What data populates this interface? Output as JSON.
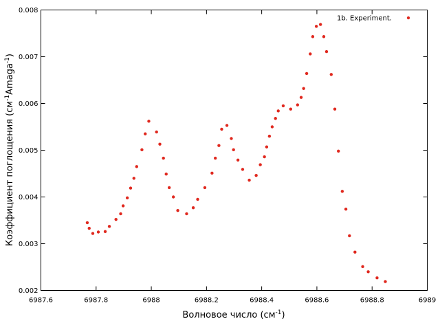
{
  "chart_data": {
    "type": "scatter",
    "title": "",
    "xlabel": "Волновое число (см",
    "xlabel_sup": "-1",
    "xlabel_end": ")",
    "ylabel_part1": "Коэффициент поглощения (см",
    "ylabel_sup1": "-1",
    "ylabel_part2": "Amaga",
    "ylabel_sup2": "-1",
    "ylabel_part3": ")",
    "xlim": [
      6987.6,
      6989.0
    ],
    "ylim": [
      0.002,
      0.008
    ],
    "x_ticks": [
      6987.6,
      6987.8,
      6988.0,
      6988.2,
      6988.4,
      6988.6,
      6988.8,
      6989.0
    ],
    "x_tick_labels": [
      "6987.6",
      "6987.8",
      "6988",
      "6988.2",
      "6988.4",
      "6988.6",
      "6988.8",
      "6989"
    ],
    "y_ticks": [
      0.002,
      0.003,
      0.004,
      0.005,
      0.006,
      0.007,
      0.008
    ],
    "y_tick_labels": [
      "0.002",
      "0.003",
      "0.004",
      "0.005",
      "0.006",
      "0.007",
      "0.008"
    ],
    "grid": false,
    "legend_position": "top-right",
    "series": [
      {
        "name": "1b. Experiment.",
        "color": "#e0281e",
        "marker": "dot",
        "points": [
          [
            6987.768,
            0.00345
          ],
          [
            6987.775,
            0.00333
          ],
          [
            6987.788,
            0.00322
          ],
          [
            6987.808,
            0.00325
          ],
          [
            6987.833,
            0.00326
          ],
          [
            6987.848,
            0.00337
          ],
          [
            6987.872,
            0.00352
          ],
          [
            6987.889,
            0.00364
          ],
          [
            6987.898,
            0.00381
          ],
          [
            6987.913,
            0.00398
          ],
          [
            6987.925,
            0.00419
          ],
          [
            6987.937,
            0.0044
          ],
          [
            6987.947,
            0.00465
          ],
          [
            6987.966,
            0.00501
          ],
          [
            6987.978,
            0.00535
          ],
          [
            6987.991,
            0.00562
          ],
          [
            6988.019,
            0.00539
          ],
          [
            6988.031,
            0.00513
          ],
          [
            6988.044,
            0.00483
          ],
          [
            6988.054,
            0.00449
          ],
          [
            6988.065,
            0.0042
          ],
          [
            6988.08,
            0.004
          ],
          [
            6988.096,
            0.00371
          ],
          [
            6988.128,
            0.00364
          ],
          [
            6988.152,
            0.00377
          ],
          [
            6988.168,
            0.00395
          ],
          [
            6988.194,
            0.0042
          ],
          [
            6988.22,
            0.00451
          ],
          [
            6988.232,
            0.00483
          ],
          [
            6988.245,
            0.0051
          ],
          [
            6988.255,
            0.00545
          ],
          [
            6988.274,
            0.00553
          ],
          [
            6988.29,
            0.00525
          ],
          [
            6988.298,
            0.00501
          ],
          [
            6988.314,
            0.00479
          ],
          [
            6988.331,
            0.00459
          ],
          [
            6988.355,
            0.00436
          ],
          [
            6988.38,
            0.00446
          ],
          [
            6988.395,
            0.00469
          ],
          [
            6988.41,
            0.00486
          ],
          [
            6988.418,
            0.00507
          ],
          [
            6988.428,
            0.0053
          ],
          [
            6988.438,
            0.0055
          ],
          [
            6988.45,
            0.00568
          ],
          [
            6988.46,
            0.00584
          ],
          [
            6988.478,
            0.00595
          ],
          [
            6988.505,
            0.00588
          ],
          [
            6988.53,
            0.00597
          ],
          [
            6988.543,
            0.00613
          ],
          [
            6988.552,
            0.00632
          ],
          [
            6988.563,
            0.00664
          ],
          [
            6988.576,
            0.00706
          ],
          [
            6988.585,
            0.00743
          ],
          [
            6988.598,
            0.00765
          ],
          [
            6988.613,
            0.00769
          ],
          [
            6988.625,
            0.00743
          ],
          [
            6988.635,
            0.00711
          ],
          [
            6988.652,
            0.00662
          ],
          [
            6988.665,
            0.00588
          ],
          [
            6988.678,
            0.00498
          ],
          [
            6988.692,
            0.00412
          ],
          [
            6988.705,
            0.00374
          ],
          [
            6988.718,
            0.00317
          ],
          [
            6988.738,
            0.00282
          ],
          [
            6988.766,
            0.00251
          ],
          [
            6988.786,
            0.0024
          ],
          [
            6988.818,
            0.00227
          ],
          [
            6988.848,
            0.00219
          ]
        ]
      }
    ]
  }
}
